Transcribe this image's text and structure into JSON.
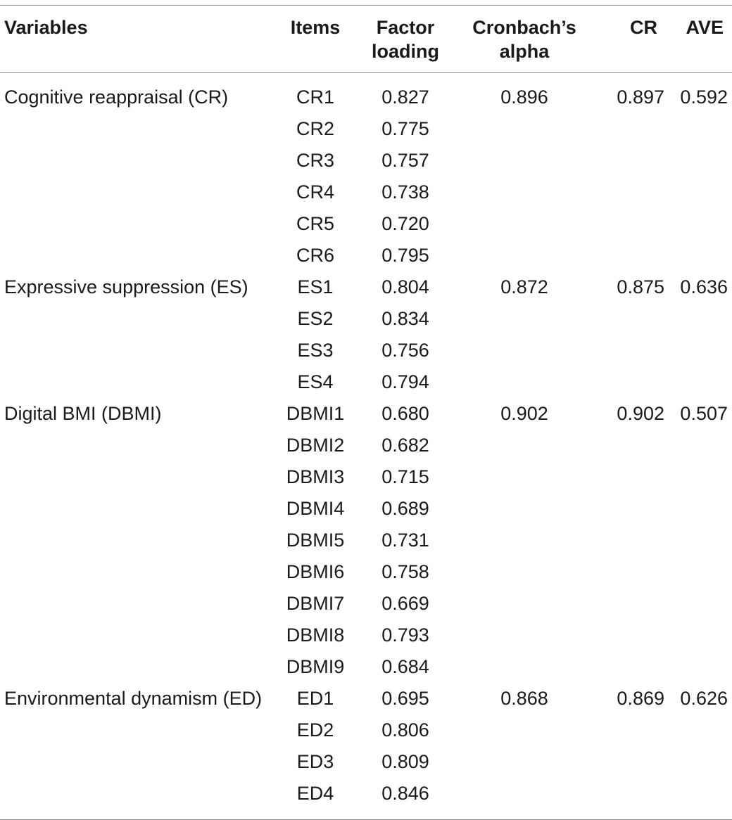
{
  "table": {
    "headers": {
      "variables": "Variables",
      "items": "Items",
      "factor_loading": "Factor loading",
      "cronbach_alpha": "Cronbach’s alpha",
      "cr": "CR",
      "ave": "AVE"
    },
    "groups": [
      {
        "variable": "Cognitive reappraisal (CR)",
        "alpha": "0.896",
        "cr": "0.897",
        "ave": "0.592",
        "rows": [
          {
            "item": "CR1",
            "loading": "0.827"
          },
          {
            "item": "CR2",
            "loading": "0.775"
          },
          {
            "item": "CR3",
            "loading": "0.757"
          },
          {
            "item": "CR4",
            "loading": "0.738"
          },
          {
            "item": "CR5",
            "loading": "0.720"
          },
          {
            "item": "CR6",
            "loading": "0.795"
          }
        ]
      },
      {
        "variable": "Expressive suppression (ES)",
        "alpha": "0.872",
        "cr": "0.875",
        "ave": "0.636",
        "rows": [
          {
            "item": "ES1",
            "loading": "0.804"
          },
          {
            "item": "ES2",
            "loading": "0.834"
          },
          {
            "item": "ES3",
            "loading": "0.756"
          },
          {
            "item": "ES4",
            "loading": "0.794"
          }
        ]
      },
      {
        "variable": "Digital BMI (DBMI)",
        "alpha": "0.902",
        "cr": "0.902",
        "ave": "0.507",
        "rows": [
          {
            "item": "DBMI1",
            "loading": "0.680"
          },
          {
            "item": "DBMI2",
            "loading": "0.682"
          },
          {
            "item": "DBMI3",
            "loading": "0.715"
          },
          {
            "item": "DBMI4",
            "loading": "0.689"
          },
          {
            "item": "DBMI5",
            "loading": "0.731"
          },
          {
            "item": "DBMI6",
            "loading": "0.758"
          },
          {
            "item": "DBMI7",
            "loading": "0.669"
          },
          {
            "item": "DBMI8",
            "loading": "0.793"
          },
          {
            "item": "DBMI9",
            "loading": "0.684"
          }
        ]
      },
      {
        "variable": "Environmental dynamism (ED)",
        "alpha": "0.868",
        "cr": "0.869",
        "ave": "0.626",
        "rows": [
          {
            "item": "ED1",
            "loading": "0.695"
          },
          {
            "item": "ED2",
            "loading": "0.806"
          },
          {
            "item": "ED3",
            "loading": "0.809"
          },
          {
            "item": "ED4",
            "loading": "0.846"
          }
        ]
      }
    ]
  }
}
